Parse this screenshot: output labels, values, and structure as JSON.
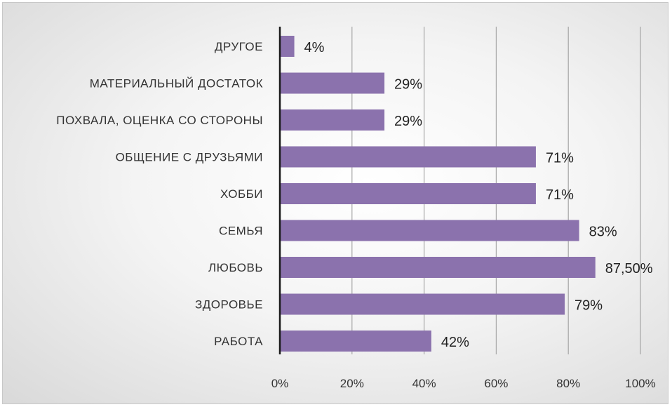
{
  "chart_data": {
    "type": "bar",
    "orientation": "horizontal",
    "categories": [
      "ДРУГОЕ",
      "МАТЕРИАЛЬНЫЙ ДОСТАТОК",
      "ПОХВАЛА, ОЦЕНКА СО СТОРОНЫ",
      "ОБЩЕНИЕ С ДРУЗЬЯМИ",
      "ХОББИ",
      "СЕМЬЯ",
      "ЛЮБОВЬ",
      "ЗДОРОВЬЕ",
      "РАБОТА"
    ],
    "values": [
      4,
      29,
      29,
      71,
      71,
      83,
      87.5,
      79,
      42
    ],
    "value_labels": [
      "4%",
      "29%",
      "29%",
      "71%",
      "71%",
      "83%",
      "87,50%",
      "79%",
      "42%"
    ],
    "xlim": [
      0,
      100
    ],
    "x_ticks": [
      "0%",
      "20%",
      "40%",
      "60%",
      "80%",
      "100%"
    ],
    "x_tick_values": [
      0,
      20,
      40,
      60,
      80,
      100
    ],
    "grid": "vertical",
    "bar_color": "#8b72ad",
    "title": "",
    "xlabel": "",
    "ylabel": ""
  }
}
